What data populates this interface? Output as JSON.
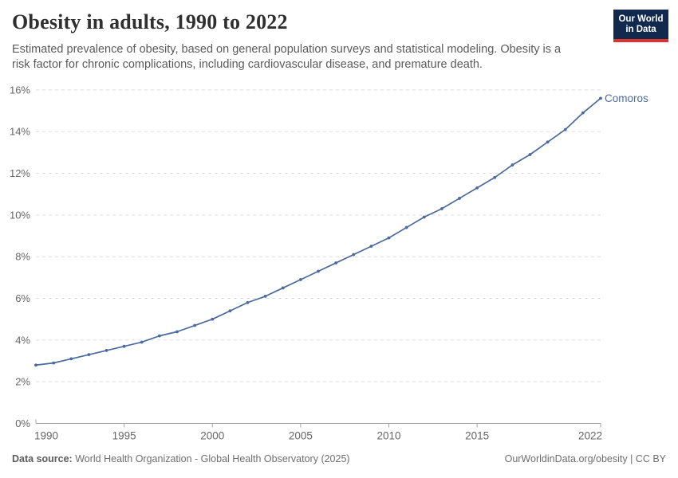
{
  "header": {
    "title": "Obesity in adults, 1990 to 2022",
    "subtitle_line1": "Estimated prevalence of obesity, based on general population surveys and statistical modeling. Obesity is a",
    "subtitle_line2": "risk factor for chronic complications, including cardiovascular disease, and premature death.",
    "logo": {
      "line1": "Our World",
      "line2": "in Data",
      "bg_color": "#12294e",
      "accent_color": "#e0312a"
    }
  },
  "chart_data": {
    "type": "line",
    "title": "Obesity in adults, 1990 to 2022",
    "xlabel": "",
    "ylabel": "",
    "xlim": [
      1990,
      2022
    ],
    "ylim": [
      0,
      16
    ],
    "grid": "horizontal-dashed",
    "legend_position": "end-of-line-label",
    "x_tick_labels": [
      1990,
      1995,
      2000,
      2005,
      2010,
      2015,
      2022
    ],
    "y_tick_values": [
      0,
      2,
      4,
      6,
      8,
      10,
      12,
      14,
      16
    ],
    "y_tick_suffix": "%",
    "x": [
      1990,
      1991,
      1992,
      1993,
      1994,
      1995,
      1996,
      1997,
      1998,
      1999,
      2000,
      2001,
      2002,
      2003,
      2004,
      2005,
      2006,
      2007,
      2008,
      2009,
      2010,
      2011,
      2012,
      2013,
      2014,
      2015,
      2016,
      2017,
      2018,
      2019,
      2020,
      2021,
      2022
    ],
    "series": [
      {
        "name": "Comoros",
        "color": "#4c6a9c",
        "values": [
          2.8,
          2.9,
          3.1,
          3.3,
          3.5,
          3.7,
          3.9,
          4.2,
          4.4,
          4.7,
          5.0,
          5.4,
          5.8,
          6.1,
          6.5,
          6.9,
          7.3,
          7.7,
          8.1,
          8.5,
          8.9,
          9.4,
          9.9,
          10.3,
          10.8,
          11.3,
          11.8,
          12.4,
          12.9,
          13.5,
          14.1,
          14.9,
          15.6
        ]
      }
    ]
  },
  "footer": {
    "source_label": "Data source:",
    "source_text": " World Health Organization - Global Health Observatory (2025)",
    "credit": "OurWorldinData.org/obesity | CC BY"
  },
  "colors": {
    "title": "#2f2f2f",
    "subtitle": "#5a5a5a",
    "axis_label": "#666666",
    "gridline": "#dddddd",
    "baseline": "#a3a3a3",
    "series_line": "#4c6a9c"
  }
}
